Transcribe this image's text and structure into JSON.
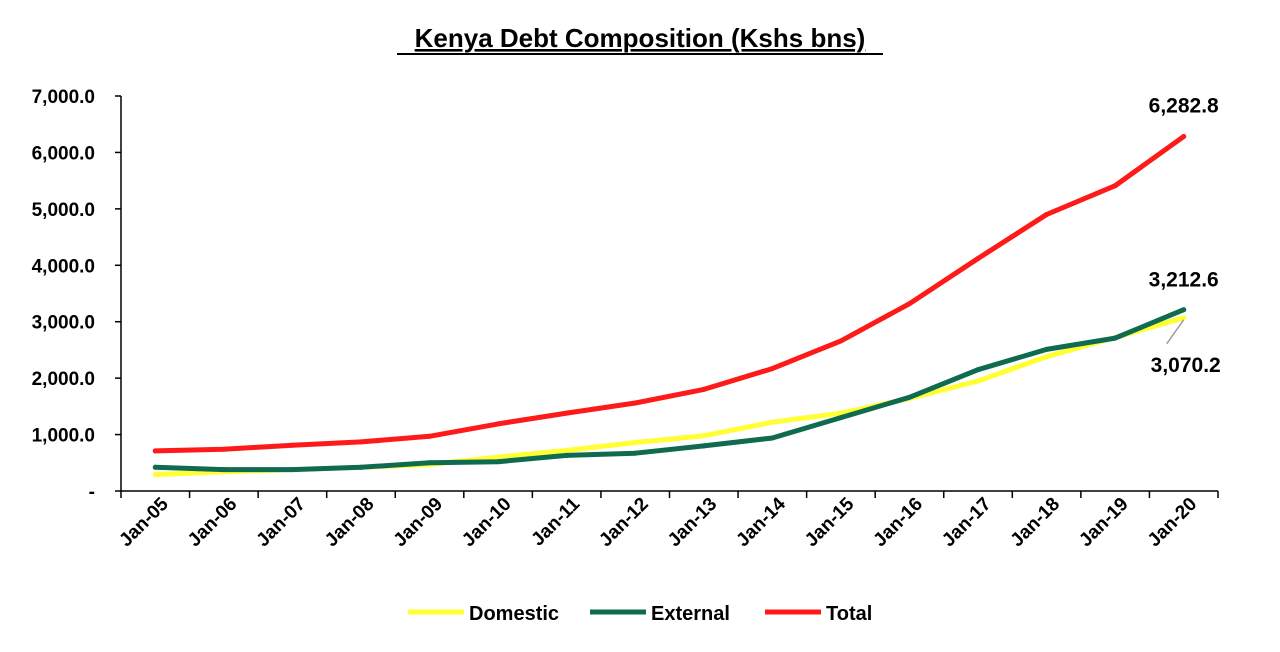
{
  "chart_data": {
    "type": "line",
    "title": "Kenya Debt Composition (Kshs bns)",
    "xlabel": "",
    "ylabel": "",
    "ylim": [
      0,
      7000
    ],
    "yticks": [
      0,
      1000,
      2000,
      3000,
      4000,
      5000,
      6000,
      7000
    ],
    "ytick_labels": [
      "-",
      "1,000.0",
      "2,000.0",
      "3,000.0",
      "4,000.0",
      "5,000.0",
      "6,000.0",
      "7,000.0"
    ],
    "categories": [
      "Jan-05",
      "Jan-06",
      "Jan-07",
      "Jan-08",
      "Jan-09",
      "Jan-10",
      "Jan-11",
      "Jan-12",
      "Jan-13",
      "Jan-14",
      "Jan-15",
      "Jan-16",
      "Jan-17",
      "Jan-18",
      "Jan-19",
      "Jan-20"
    ],
    "grid": false,
    "legend_position": "bottom",
    "series": [
      {
        "name": "Domestic",
        "color": "#FFFF33",
        "values": [
          290,
          340,
          380,
          420,
          470,
          600,
          720,
          860,
          980,
          1220,
          1380,
          1640,
          1950,
          2380,
          2720,
          3070.2
        ]
      },
      {
        "name": "External",
        "color": "#0F6B4F",
        "values": [
          420,
          380,
          380,
          420,
          500,
          520,
          630,
          670,
          800,
          940,
          1300,
          1660,
          2150,
          2510,
          2710,
          3212.6
        ]
      },
      {
        "name": "Total",
        "color": "#FF1A1A",
        "values": [
          710,
          740,
          810,
          870,
          970,
          1190,
          1380,
          1560,
          1800,
          2170,
          2660,
          3320,
          4120,
          4900,
          5410,
          6282.8
        ]
      }
    ],
    "annotations": [
      {
        "series": "Total",
        "label": "6,282.8"
      },
      {
        "series": "External",
        "label": "3,212.6"
      },
      {
        "series": "Domestic",
        "label": "3,070.2"
      }
    ]
  }
}
